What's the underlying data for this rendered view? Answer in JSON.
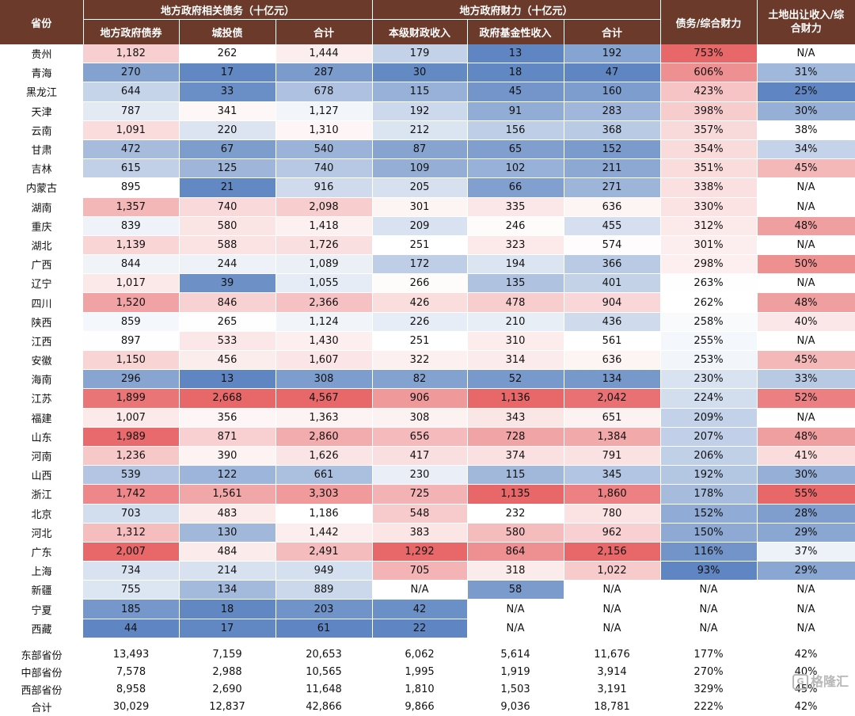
{
  "header": {
    "province": "省份",
    "group_debt": "地方政府相关债务（十亿元）",
    "group_fiscal": "地方政府财力（十亿元）",
    "ratio": "债务/综合财力",
    "land_line1": "土地出让收入/综",
    "land_line2": "合财力",
    "cols": [
      "地方政府债券",
      "城投债",
      "合计",
      "本级财政收入",
      "政府基金性收入",
      "合计"
    ]
  },
  "rows": [
    [
      "贵州",
      "1,182",
      "262",
      "1,444",
      "179",
      "13",
      "192",
      "753%",
      "N/A"
    ],
    [
      "青海",
      "270",
      "17",
      "287",
      "30",
      "18",
      "47",
      "606%",
      "31%"
    ],
    [
      "黑龙江",
      "644",
      "33",
      "678",
      "115",
      "45",
      "160",
      "423%",
      "25%"
    ],
    [
      "天津",
      "787",
      "341",
      "1,127",
      "192",
      "91",
      "283",
      "398%",
      "30%"
    ],
    [
      "云南",
      "1,091",
      "220",
      "1,310",
      "212",
      "156",
      "368",
      "357%",
      "38%"
    ],
    [
      "甘肃",
      "472",
      "67",
      "540",
      "87",
      "65",
      "152",
      "354%",
      "34%"
    ],
    [
      "吉林",
      "615",
      "125",
      "740",
      "109",
      "102",
      "211",
      "351%",
      "45%"
    ],
    [
      "内蒙古",
      "895",
      "21",
      "916",
      "205",
      "66",
      "271",
      "338%",
      "N/A"
    ],
    [
      "湖南",
      "1,357",
      "740",
      "2,098",
      "301",
      "335",
      "636",
      "330%",
      "N/A"
    ],
    [
      "重庆",
      "839",
      "580",
      "1,418",
      "209",
      "246",
      "455",
      "312%",
      "48%"
    ],
    [
      "湖北",
      "1,139",
      "588",
      "1,726",
      "251",
      "323",
      "574",
      "301%",
      "N/A"
    ],
    [
      "广西",
      "844",
      "244",
      "1,089",
      "172",
      "194",
      "366",
      "298%",
      "50%"
    ],
    [
      "辽宁",
      "1,017",
      "39",
      "1,055",
      "266",
      "135",
      "401",
      "263%",
      "N/A"
    ],
    [
      "四川",
      "1,520",
      "846",
      "2,366",
      "426",
      "478",
      "904",
      "262%",
      "48%"
    ],
    [
      "陕西",
      "859",
      "265",
      "1,124",
      "226",
      "210",
      "436",
      "258%",
      "40%"
    ],
    [
      "江西",
      "897",
      "533",
      "1,430",
      "251",
      "310",
      "561",
      "255%",
      "N/A"
    ],
    [
      "安徽",
      "1,150",
      "456",
      "1,607",
      "322",
      "314",
      "636",
      "253%",
      "45%"
    ],
    [
      "海南",
      "296",
      "13",
      "308",
      "82",
      "52",
      "134",
      "230%",
      "33%"
    ],
    [
      "江苏",
      "1,899",
      "2,668",
      "4,567",
      "906",
      "1,136",
      "2,042",
      "224%",
      "52%"
    ],
    [
      "福建",
      "1,007",
      "356",
      "1,363",
      "308",
      "343",
      "651",
      "209%",
      "N/A"
    ],
    [
      "山东",
      "1,989",
      "871",
      "2,860",
      "656",
      "728",
      "1,384",
      "207%",
      "48%"
    ],
    [
      "河南",
      "1,236",
      "390",
      "1,626",
      "417",
      "374",
      "791",
      "206%",
      "41%"
    ],
    [
      "山西",
      "539",
      "122",
      "661",
      "230",
      "115",
      "345",
      "192%",
      "30%"
    ],
    [
      "浙江",
      "1,742",
      "1,561",
      "3,303",
      "725",
      "1,135",
      "1,860",
      "178%",
      "55%"
    ],
    [
      "北京",
      "703",
      "483",
      "1,186",
      "548",
      "232",
      "780",
      "152%",
      "28%"
    ],
    [
      "河北",
      "1,312",
      "130",
      "1,442",
      "383",
      "580",
      "962",
      "150%",
      "29%"
    ],
    [
      "广东",
      "2,007",
      "484",
      "2,491",
      "1,292",
      "864",
      "2,156",
      "116%",
      "37%"
    ],
    [
      "上海",
      "734",
      "214",
      "949",
      "705",
      "318",
      "1,022",
      "93%",
      "29%"
    ],
    [
      "新疆",
      "755",
      "134",
      "889",
      "N/A",
      "58",
      "N/A",
      "N/A",
      "N/A"
    ],
    [
      "宁夏",
      "185",
      "18",
      "203",
      "42",
      "N/A",
      "N/A",
      "N/A",
      "N/A"
    ],
    [
      "西藏",
      "44",
      "17",
      "61",
      "22",
      "N/A",
      "N/A",
      "N/A",
      "N/A"
    ]
  ],
  "summary": [
    [
      "东部省份",
      "13,493",
      "7,159",
      "20,653",
      "6,062",
      "5,614",
      "11,676",
      "177%",
      "42%"
    ],
    [
      "中部省份",
      "7,578",
      "2,988",
      "10,565",
      "1,995",
      "1,919",
      "3,914",
      "270%",
      "40%"
    ],
    [
      "西部省份",
      "8,958",
      "2,690",
      "11,648",
      "1,810",
      "1,503",
      "3,191",
      "329%",
      "45%"
    ],
    [
      "合计",
      "30,029",
      "12,837",
      "42,866",
      "9,866",
      "9,036",
      "18,781",
      "222%",
      "42%"
    ]
  ],
  "colors": {
    "header_bg": "#6b3a2a",
    "high": "#e8686a",
    "mid": "#ffffff",
    "low": "#5f86c2"
  },
  "watermark": {
    "icon": "G",
    "text": "格隆汇"
  }
}
